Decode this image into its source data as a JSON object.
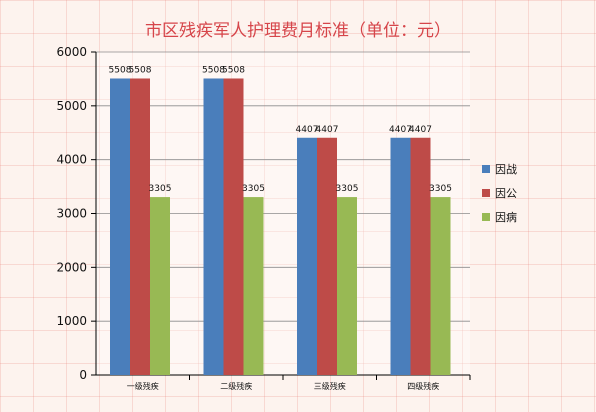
{
  "chart_data": {
    "type": "bar",
    "title": "市区残疾军人护理费月标准（单位：元）",
    "categories": [
      "一级残疾",
      "二级残疾",
      "三级残疾",
      "四级残疾"
    ],
    "series": [
      {
        "name": "因战",
        "values": [
          5508,
          5508,
          4407,
          4407
        ],
        "color": "#4a7ebb"
      },
      {
        "name": "因公",
        "values": [
          5508,
          5508,
          4407,
          4407
        ],
        "color": "#be4b48"
      },
      {
        "name": "因病",
        "values": [
          3305,
          3305,
          3305,
          3305
        ],
        "color": "#98b954"
      }
    ],
    "ylim": [
      0,
      6000
    ],
    "yticks": [
      0,
      1000,
      2000,
      3000,
      4000,
      5000,
      6000
    ],
    "grid": true,
    "legend_position": "right"
  }
}
